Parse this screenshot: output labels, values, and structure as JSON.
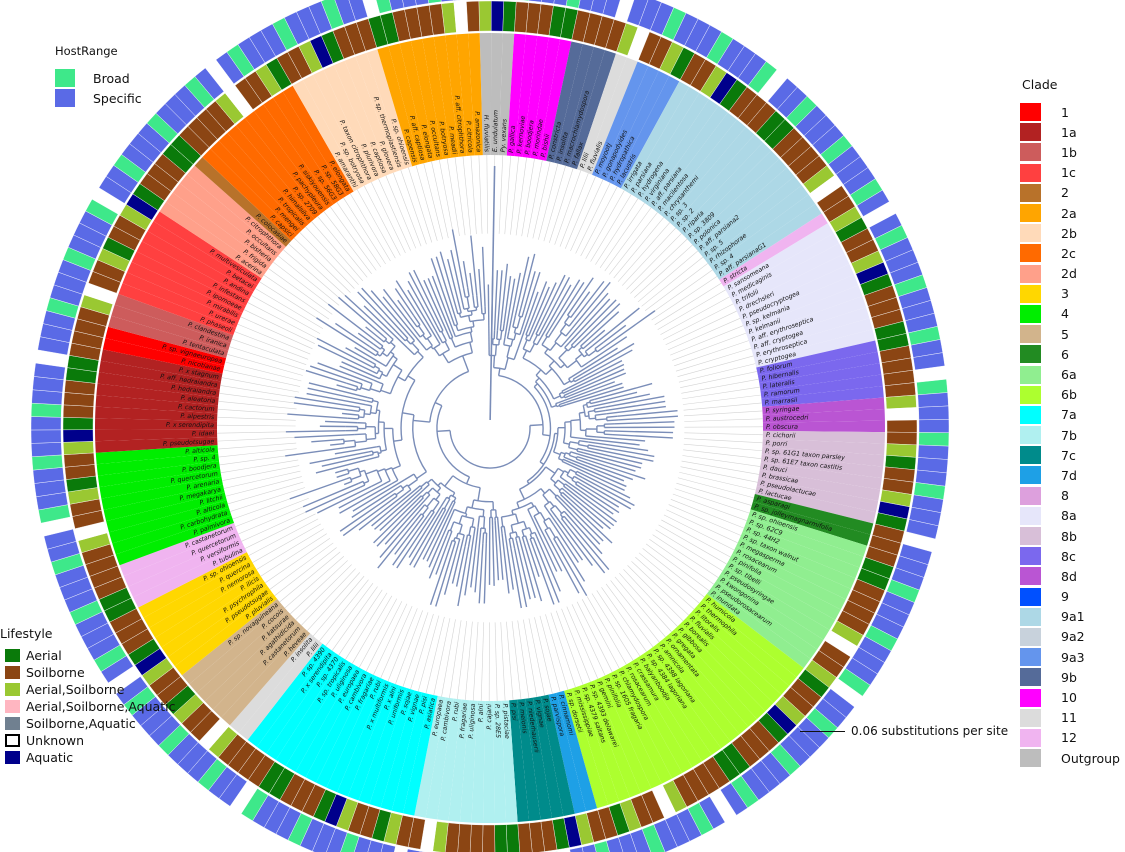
{
  "host_range_legend": {
    "title": "HostRange",
    "items": [
      {
        "label": "Broad",
        "color": "#3ee88a"
      },
      {
        "label": "Specific",
        "color": "#5a6ae6"
      }
    ]
  },
  "lifestyle_legend": {
    "title": "Lifestyle",
    "items": [
      {
        "label": "Aerial",
        "color": "#0a7a0a"
      },
      {
        "label": "Soilborne",
        "color": "#8b4513"
      },
      {
        "label": "Aerial,Soilborne",
        "color": "#9ac832"
      },
      {
        "label": "Aerial,Soilborne,Aquatic",
        "color": "#ffb6c1"
      },
      {
        "label": "Soilborne,Aquatic",
        "color": "#708090"
      },
      {
        "label": "Unknown",
        "color": "#ffffff"
      },
      {
        "label": "Aquatic",
        "color": "#00008b"
      }
    ]
  },
  "clade_legend": {
    "title": "Clade",
    "items": [
      {
        "label": "1",
        "color": "#ff0000"
      },
      {
        "label": "1a",
        "color": "#b22222"
      },
      {
        "label": "1b",
        "color": "#cd5c5c"
      },
      {
        "label": "1c",
        "color": "#ff4040"
      },
      {
        "label": "2",
        "color": "#b8722a"
      },
      {
        "label": "2a",
        "color": "#ffa500"
      },
      {
        "label": "2b",
        "color": "#ffdab9"
      },
      {
        "label": "2c",
        "color": "#ff6a00"
      },
      {
        "label": "2d",
        "color": "#ffa08a"
      },
      {
        "label": "3",
        "color": "#ffd700"
      },
      {
        "label": "4",
        "color": "#00ee00"
      },
      {
        "label": "5",
        "color": "#d2b48c"
      },
      {
        "label": "6",
        "color": "#228b22"
      },
      {
        "label": "6a",
        "color": "#90ee90"
      },
      {
        "label": "6b",
        "color": "#adff2f"
      },
      {
        "label": "7a",
        "color": "#00ffff"
      },
      {
        "label": "7b",
        "color": "#b0f0f0"
      },
      {
        "label": "7c",
        "color": "#008b8b"
      },
      {
        "label": "7d",
        "color": "#1ea0e6"
      },
      {
        "label": "8",
        "color": "#dda0dd"
      },
      {
        "label": "8a",
        "color": "#e6e6fa"
      },
      {
        "label": "8b",
        "color": "#d8bfd8"
      },
      {
        "label": "8c",
        "color": "#7b68ee"
      },
      {
        "label": "8d",
        "color": "#ba55d3"
      },
      {
        "label": "9",
        "color": "#0050ff"
      },
      {
        "label": "9a1",
        "color": "#add8e6"
      },
      {
        "label": "9a2",
        "color": "#c8d2dc"
      },
      {
        "label": "9a3",
        "color": "#6495ed"
      },
      {
        "label": "9b",
        "color": "#556b99"
      },
      {
        "label": "10",
        "color": "#ff00ff"
      },
      {
        "label": "11",
        "color": "#dcdcdc"
      },
      {
        "label": "12",
        "color": "#f0b4f0"
      },
      {
        "label": "Outgroup",
        "color": "#bdbdbd"
      }
    ]
  },
  "scale_bar": {
    "label": "0.06 substitutions per site"
  },
  "tree": {
    "branch_color": "#7a8db8",
    "clade_blocks": [
      {
        "clade": "Outgroup",
        "n": 3,
        "tips": [
          "H. fluviatilis",
          "E. undulatum",
          "Py. vexans"
        ]
      },
      {
        "clade": "10",
        "n": 5,
        "tips": [
          "P. gallica",
          "P. kernoviae",
          "P. boodjera",
          "P. morindae",
          "P. bishii"
        ]
      },
      {
        "clade": "9b",
        "n": 4,
        "tips": [
          "P. constricta",
          "P. insolita",
          "P. macrochlamydospora",
          "P. fallax"
        ]
      },
      {
        "clade": "11",
        "n": 2,
        "tips": [
          "P. lilii",
          "P. fluvialis"
        ]
      },
      {
        "clade": "9a3",
        "n": 4,
        "tips": [
          "P. moyootj",
          "P. gonapodyides",
          "P. hydropathica",
          "P. lacustris"
        ]
      },
      {
        "clade": "9a1",
        "n": 17,
        "tips": [
          "P. irrigata",
          "P. parsiana",
          "P. hydrogena",
          "P. virginiana",
          "P. aff. parsiana",
          "P. macilentosa",
          "P. chrysanthemi",
          "P. sp. 3",
          "P. sp. 2",
          "P. riparia",
          "P. sp. 3809",
          "P. polonica",
          "P. aff. parsiana2",
          "P. sp. 5",
          "P. rhizophorae",
          "P. sp. 4",
          "P. aff. parsianaG1"
        ]
      },
      {
        "clade": "12",
        "n": 1,
        "tips": [
          "P. stricta"
        ]
      },
      {
        "clade": "8a",
        "n": 11,
        "tips": [
          "P. sansomeana",
          "P. medicaginis",
          "P. trifolii",
          "P. drechsleri",
          "P. pseudocryptogea",
          "P. sp. kelmania",
          "P. kelmanii",
          "P. aff. erythroseptica",
          "P. aff. cryptogea",
          "P. erythroseptica",
          "P. cryptogea"
        ]
      },
      {
        "clade": "8c",
        "n": 5,
        "tips": [
          "P. foliorum",
          "P. hibernalis",
          "P. lateralis",
          "P. ramorum",
          "P. marrasii"
        ]
      },
      {
        "clade": "8d",
        "n": 3,
        "tips": [
          "P. syringae",
          "P. austrocedri",
          "P. obscura"
        ]
      },
      {
        "clade": "8b",
        "n": 8,
        "tips": [
          "P. cichorii",
          "P. porri",
          "P. sp. 61G1 taxon parsley",
          "P. sp. 61E7 taxon castitis",
          "P. dauci",
          "P. brassicae",
          "P. pseudolactucae",
          "P. lactucae"
        ]
      },
      {
        "clade": "6",
        "n": 2,
        "tips": [
          "P. asparagi",
          "P. sp. jolleymagnarmifolia"
        ]
      },
      {
        "clade": "6a",
        "n": 12,
        "tips": [
          "P. sp. ohioensis",
          "P. sp. 62C9",
          "P. sp. 44H2",
          "P. sp. taxon walnut",
          "P. megasperma",
          "P. rosacearum",
          "P. pinifolia",
          "P. sp. tibelli",
          "P. pseudosyringae",
          "P. kwongonina",
          "P. pseudorosacearum",
          "P. inundata"
        ]
      },
      {
        "clade": "6b",
        "n": 22,
        "tips": [
          "P. humicola",
          "P. thermophila",
          "P. litoralis",
          "P. fluvialis",
          "P. borealis",
          "P. gibbosa",
          "P. gregata",
          "P. ornamentata",
          "P. amnicola",
          "P. sp. 4398 lagoriana",
          "P. sp. 4384 lagoriana",
          "P. balyanboodja",
          "P. crassamura",
          "P. rosacearum",
          "P. chlamydospora",
          "P. sp. 1605 fragaria",
          "P. pinifolia",
          "P. gemini",
          "P. sp. 4393 delawarei",
          "P. sp. 4379 saltans",
          "P. mississippiae",
          "P. sp. dorsetii"
        ]
      },
      {
        "clade": "7d",
        "n": 2,
        "tips": [
          "P. cinnamomi",
          "P. parvispora"
        ]
      },
      {
        "clade": "7c",
        "n": 5,
        "tips": [
          "P. sojae",
          "P. vignae",
          "P. niederhauserii",
          "P. melonis",
          "P. pisi"
        ]
      },
      {
        "clade": "7b",
        "n": 9,
        "tips": [
          "P. pistaciae",
          "P. sp. 28E5",
          "P. cajani",
          "P. alni",
          "P. uliginosa",
          "P. fragariae",
          "P. rubi",
          "P. cambivora",
          "P. europaea"
        ]
      },
      {
        "clade": "7a",
        "n": 16,
        "tips": [
          "P. asiatica",
          "P. pisi",
          "P. vignae",
          "P. sojae",
          "P. uniformis",
          "P. x alni",
          "P. x multiformis",
          "P. rubi",
          "P. fragariae",
          "P. cambivora",
          "P. europaea",
          "P. uliginosa",
          "P. sp. tropicalis",
          "P. sp. 4370",
          "P. x serendipita",
          "P. sp. 4390"
        ]
      },
      {
        "clade": "11",
        "n": 2,
        "tips": [
          "P. lilii",
          "P. insolita"
        ]
      },
      {
        "clade": "5",
        "n": 6,
        "tips": [
          "P. heveae",
          "P. castanetorum",
          "P. agathidicida",
          "P. katsurae",
          "P. cocois",
          "P. sp. novaguineana"
        ]
      },
      {
        "clade": "3",
        "n": 7,
        "tips": [
          "P. pluvialis",
          "P. pseudotsugae",
          "P. psychrophila",
          "P. ilicis",
          "P. nemorosa",
          "P. quercina",
          "P. sp. ohioensis"
        ]
      },
      {
        "clade": "12",
        "n": 4,
        "tips": [
          "P. tubulina",
          "P. versiformis",
          "P. quercetorum",
          "P. castanetorum"
        ]
      },
      {
        "clade": "4",
        "n": 10,
        "tips": [
          "P. palmivora",
          "P. carbohydrata",
          "P. alticola",
          "P. litchii",
          "P. megakarya",
          "P. arenaria",
          "P. quercetorum",
          "P. boodjera",
          "P. sp. 4",
          "P. alticola"
        ]
      },
      {
        "clade": "1a",
        "n": 9,
        "tips": [
          "P. pseudotsugae",
          "P. idaei",
          "P. x serendipita",
          "P. alpestris",
          "P. cactorum",
          "P. aleatoria",
          "P. hedraiandra",
          "P. aff. hedraiandra",
          "P. x stagnum"
        ]
      },
      {
        "clade": "1",
        "n": 2,
        "tips": [
          "P. nicotianae",
          "P. sp. vignaeuropea"
        ]
      },
      {
        "clade": "1b",
        "n": 3,
        "tips": [
          "P. tentaculata",
          "P. iranica",
          "P. clandestina"
        ]
      },
      {
        "clade": "1c",
        "n": 8,
        "tips": [
          "P. phaseoli",
          "P. urerae",
          "P. mirabilis",
          "P. ipomoeae",
          "P. infestans",
          "P. andina",
          "P. betacei",
          "P. multivesiculata"
        ]
      },
      {
        "clade": "2d",
        "n": 5,
        "tips": [
          "P. acerina",
          "P. frigida",
          "P. bisheria",
          "P. occultans",
          "P. citrophthora"
        ]
      },
      {
        "clade": "2",
        "n": 1,
        "tips": [
          "P. colocasiae"
        ]
      },
      {
        "clade": "2c",
        "n": 10,
        "tips": [
          "P. capsici",
          "P. mengei",
          "P. tropicalis",
          "P. himalsilva",
          "P. sp. 2709",
          "P. pachypleura",
          "P. siskiyouensis",
          "P. sp. 56G3",
          "P. sp. 58G3",
          "P. elongata"
        ]
      },
      {
        "clade": "2b",
        "n": 8,
        "tips": [
          "P. amaranthi",
          "P. sp. botryosa",
          "P. taxon citrophthora",
          "P. plurivora",
          "P. captiosa",
          "P. glovera",
          "P. sp. thermoplastiensis",
          "P. sp. ohioensis"
        ]
      },
      {
        "clade": "2a",
        "n": 9,
        "tips": [
          "P. capensis",
          "P. aff. captiosa",
          "P. elongata",
          "P. occultans",
          "P. botryosa",
          "P. meadii",
          "P. aff. citrophthora",
          "P. citricola",
          "P. amazonica"
        ]
      }
    ],
    "host_range_pattern": [
      "Specific",
      "Specific",
      "Broad",
      "Specific",
      "Specific",
      "Broad",
      "Specific",
      "Specific",
      "Specific",
      "Broad",
      "Specific",
      "Specific",
      "Broad",
      "Specific",
      "Specific",
      "Specific",
      "Broad",
      "Specific",
      "Specific",
      "Broad"
    ],
    "lifestyle_pattern": [
      "Soilborne",
      "Soilborne",
      "Aerial",
      "Aerial,Soilborne",
      "Soilborne",
      "Aerial",
      "Soilborne",
      "Aerial,Soilborne",
      "Soilborne",
      "Soilborne",
      "Aquatic",
      "Soilborne",
      "Aerial",
      "Soilborne",
      "Unknown",
      "Aerial,Soilborne",
      "Soilborne",
      "Aerial",
      "Soilborne",
      "Soilborne"
    ]
  }
}
